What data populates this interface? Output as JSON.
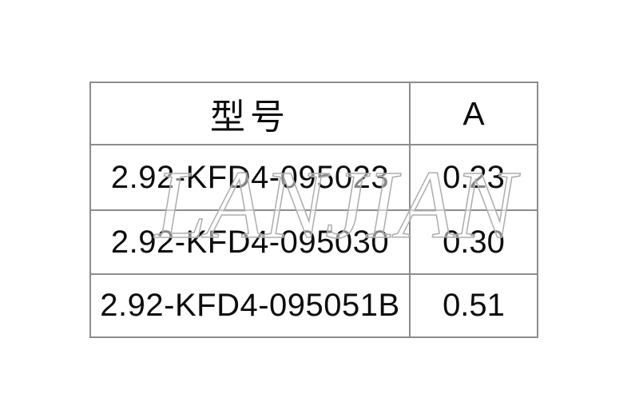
{
  "page": {
    "background": "#ffffff",
    "border_color": "#8c8c8c",
    "text_color": "#0d0d0d"
  },
  "table": {
    "headers": {
      "model": "型号",
      "a": "A"
    },
    "rows": [
      {
        "model": "2.92-KFD4-095023",
        "a": "0.23"
      },
      {
        "model": "2.92-KFD4-095030",
        "a": "0.30"
      },
      {
        "model": "2.92-KFD4-095051B",
        "a": "0.51"
      }
    ]
  },
  "watermark": {
    "text": "LANJIAN",
    "stroke_color": "#aeaeae"
  }
}
